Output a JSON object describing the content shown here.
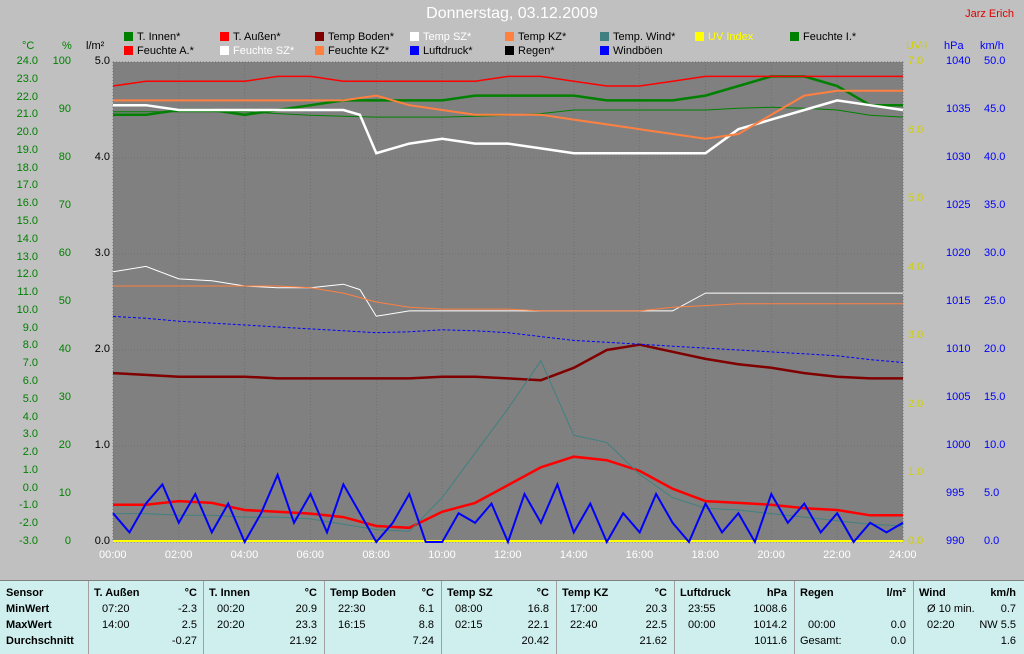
{
  "title": "Donnerstag, 03.12.2009",
  "author": "Jarz Erich",
  "colors": {
    "background": "#c0c0c0",
    "plot": "#808080",
    "grid": "#707070",
    "t_innen": "#008000",
    "t_aussen": "#ff0000",
    "temp_boden": "#800000",
    "temp_sz": "#ffffff",
    "temp_kz": "#ff8040",
    "temp_wind": "#408080",
    "uv_index": "#ffff00",
    "feuchte_i": "#008000",
    "feuchte_a": "#ff0000",
    "feuchte_sz": "#ffffff",
    "feuchte_kz": "#ff8040",
    "luftdruck": "#0000ff",
    "regen": "#000000",
    "windboeen": "#0000ff"
  },
  "legend_row1": [
    "T. Innen*",
    "T. Außen*",
    "Temp Boden*",
    "Temp SZ*",
    "Temp KZ*",
    "Temp. Wind*",
    "UV Index",
    "Feuchte I.*"
  ],
  "legend_row2": [
    "Feuchte A.*",
    "Feuchte SZ*",
    "Feuchte KZ*",
    "Luftdruck*",
    "Regen*",
    "Windböen"
  ],
  "axis_units": {
    "temp": "°C",
    "hum": "%",
    "rain": "l/m²",
    "uv": "UV-I",
    "press": "hPa",
    "wind": "km/h"
  },
  "chart_data": {
    "type": "line",
    "x_ticks": [
      "00:00",
      "02:00",
      "04:00",
      "06:00",
      "08:00",
      "10:00",
      "12:00",
      "14:00",
      "16:00",
      "18:00",
      "20:00",
      "22:00",
      "24:00"
    ],
    "temp_axis": {
      "min": -3.0,
      "max": 24.0,
      "step": 1.0,
      "labels": [
        "-3.0",
        "-2.0",
        "-1.0",
        "0.0",
        "1.0",
        "2.0",
        "3.0",
        "4.0",
        "5.0",
        "6.0",
        "7.0",
        "8.0",
        "9.0",
        "10.0",
        "11.0",
        "12.0",
        "13.0",
        "14.0",
        "15.0",
        "16.0",
        "17.0",
        "18.0",
        "19.0",
        "20.0",
        "21.0",
        "22.0",
        "23.0",
        "24.0"
      ]
    },
    "hum_axis": {
      "min": 0,
      "max": 100,
      "labels": [
        "0",
        "10",
        "20",
        "30",
        "40",
        "50",
        "60",
        "70",
        "80",
        "90",
        "100"
      ]
    },
    "rain_axis": {
      "min": 0.0,
      "max": 5.0,
      "labels": [
        "0.0",
        "1.0",
        "2.0",
        "3.0",
        "4.0",
        "5.0"
      ]
    },
    "uv_axis": {
      "min": 0.0,
      "max": 7.0,
      "labels": [
        "0.0",
        "1.0",
        "2.0",
        "3.0",
        "4.0",
        "5.0",
        "6.0",
        "7.0"
      ]
    },
    "press_axis": {
      "min": 990,
      "max": 1040,
      "labels": [
        "990",
        "995",
        "1000",
        "1005",
        "1010",
        "1015",
        "1020",
        "1025",
        "1030",
        "1035",
        "1040"
      ]
    },
    "wind_axis": {
      "min": 0.0,
      "max": 50.0,
      "labels": [
        "0.0",
        "5.0",
        "10.0",
        "15.0",
        "20.0",
        "25.0",
        "30.0",
        "35.0",
        "40.0",
        "45.0",
        "50.0"
      ]
    },
    "series": [
      {
        "name": "T. Innen*",
        "axis": "temp",
        "x": [
          0,
          1,
          2,
          3,
          4,
          5,
          6,
          7,
          8,
          9,
          10,
          11,
          12,
          13,
          14,
          15,
          16,
          17,
          18,
          19,
          20,
          21,
          22,
          23,
          24
        ],
        "y": [
          21.2,
          21.2,
          21.2,
          21.2,
          21.2,
          21.1,
          21.0,
          20.95,
          20.9,
          20.9,
          20.9,
          20.95,
          21.0,
          21.1,
          21.3,
          21.3,
          21.3,
          21.3,
          21.3,
          21.4,
          21.45,
          21.4,
          21.3,
          21.0,
          20.9
        ]
      },
      {
        "name": "T. Außen*",
        "axis": "temp",
        "x": [
          0,
          1,
          2,
          3,
          4,
          5,
          6,
          7,
          8,
          9,
          10,
          11,
          12,
          13,
          14,
          15,
          16,
          17,
          18,
          19,
          20,
          21,
          22,
          23,
          24
        ],
        "y": [
          -0.9,
          -0.9,
          -0.7,
          -0.8,
          -1.2,
          -1.3,
          -1.4,
          -1.6,
          -2.1,
          -2.2,
          -1.3,
          -0.8,
          0.2,
          1.2,
          1.8,
          1.6,
          1.0,
          0.0,
          -0.7,
          -0.8,
          -0.9,
          -1.1,
          -1.2,
          -1.5,
          -1.5
        ]
      },
      {
        "name": "Temp Boden*",
        "axis": "temp",
        "x": [
          0,
          1,
          2,
          3,
          4,
          5,
          6,
          7,
          8,
          9,
          10,
          11,
          12,
          13,
          14,
          15,
          16,
          17,
          18,
          19,
          20,
          21,
          22,
          23,
          24
        ],
        "y": [
          6.5,
          6.4,
          6.3,
          6.3,
          6.3,
          6.2,
          6.2,
          6.2,
          6.2,
          6.2,
          6.3,
          6.3,
          6.2,
          6.1,
          6.8,
          7.8,
          8.1,
          7.7,
          7.3,
          7.0,
          6.8,
          6.5,
          6.3,
          6.2,
          6.2
        ]
      },
      {
        "name": "Temp SZ*",
        "axis": "temp",
        "x": [
          0,
          1,
          2,
          3,
          4,
          5,
          6,
          7,
          7.5,
          8,
          9,
          10,
          11,
          12,
          13,
          14,
          15,
          16,
          17,
          18,
          19,
          20,
          21,
          22,
          23,
          24
        ],
        "y": [
          12.2,
          12.5,
          11.8,
          11.7,
          11.4,
          11.3,
          11.3,
          11.5,
          11.2,
          9.7,
          10.0,
          10.0,
          10.0,
          10.0,
          10.0,
          10.0,
          10.0,
          10.0,
          10.0,
          11.0,
          11.0,
          11.0,
          11.0,
          11.0,
          11.0,
          11.0
        ]
      },
      {
        "name": "Temp KZ*",
        "axis": "temp",
        "x": [
          0,
          1,
          2,
          3,
          4,
          5,
          6,
          7,
          8,
          9,
          10,
          11,
          12,
          13,
          14,
          15,
          16,
          17,
          18,
          19,
          20,
          21,
          22,
          23,
          24
        ],
        "y": [
          11.4,
          11.4,
          11.4,
          11.4,
          11.4,
          11.4,
          11.3,
          11.0,
          10.5,
          10.2,
          10.1,
          10.1,
          10.1,
          10.0,
          10.0,
          10.0,
          10.0,
          10.2,
          10.3,
          10.4,
          10.4,
          10.4,
          10.4,
          10.4,
          10.4
        ]
      },
      {
        "name": "Temp. Wind*",
        "axis": "temp",
        "x": [
          0,
          1,
          2,
          3,
          4,
          5,
          6,
          7,
          8,
          9,
          10,
          11,
          12,
          13,
          14,
          15,
          16,
          17,
          18,
          19,
          20,
          21,
          22,
          23,
          24
        ],
        "y": [
          -1.4,
          -1.4,
          -1.5,
          -1.5,
          -1.6,
          -1.6,
          -1.7,
          -2.0,
          -2.3,
          -2.4,
          -0.5,
          2.0,
          4.5,
          7.2,
          3.0,
          2.6,
          0.8,
          -0.5,
          -1.1,
          -1.2,
          -1.4,
          -1.6,
          -1.8,
          -2.0,
          -2.1
        ]
      },
      {
        "name": "Feuchte I.*",
        "axis": "hum",
        "x": [
          0,
          1,
          2,
          3,
          4,
          5,
          6,
          7,
          8,
          9,
          10,
          11,
          12,
          13,
          14,
          15,
          16,
          17,
          18,
          19,
          20,
          21,
          22,
          23,
          24
        ],
        "y": [
          89,
          89,
          90,
          90,
          89,
          90,
          91,
          92,
          92,
          92,
          92,
          93,
          93,
          93,
          93,
          92,
          92,
          92,
          93,
          95,
          97,
          97,
          95,
          91,
          91
        ]
      },
      {
        "name": "Feuchte A.*",
        "axis": "hum",
        "x": [
          0,
          1,
          2,
          3,
          4,
          5,
          6,
          7,
          8,
          9,
          10,
          11,
          12,
          13,
          14,
          15,
          16,
          17,
          18,
          19,
          20,
          21,
          22,
          23,
          24
        ],
        "y": [
          95,
          96,
          96,
          96,
          96,
          97,
          97,
          96,
          96,
          96,
          96,
          96,
          97,
          97,
          96,
          95,
          95,
          96,
          97,
          97,
          97,
          97,
          97,
          97,
          97
        ]
      },
      {
        "name": "Feuchte SZ*",
        "axis": "hum",
        "x": [
          0,
          1,
          2,
          3,
          4,
          5,
          6,
          7,
          7.5,
          8,
          9,
          10,
          11,
          12,
          13,
          14,
          15,
          16,
          17,
          18,
          19,
          20,
          21,
          22,
          23,
          24
        ],
        "y": [
          91,
          91,
          90,
          90,
          90,
          90,
          90,
          90,
          89,
          81,
          83,
          84,
          83,
          83,
          82,
          81,
          81,
          81,
          81,
          81,
          86,
          88,
          90,
          92,
          91,
          90
        ]
      },
      {
        "name": "Feuchte KZ*",
        "axis": "hum",
        "x": [
          0,
          1,
          2,
          3,
          4,
          5,
          6,
          7,
          8,
          9,
          10,
          11,
          12,
          13,
          14,
          15,
          16,
          17,
          18,
          19,
          20,
          21,
          22,
          23,
          24
        ],
        "y": [
          92,
          92,
          92,
          92,
          92,
          92,
          92,
          92,
          93,
          91,
          90,
          89,
          89,
          89,
          88,
          87,
          86,
          85,
          84,
          85,
          89,
          93,
          94,
          94,
          94
        ]
      },
      {
        "name": "Luftdruck*",
        "axis": "press",
        "x": [
          0,
          1,
          2,
          3,
          4,
          5,
          6,
          7,
          8,
          9,
          10,
          11,
          12,
          13,
          14,
          15,
          16,
          17,
          18,
          19,
          20,
          21,
          22,
          23,
          24
        ],
        "y": [
          1013.5,
          1013.3,
          1013.0,
          1012.8,
          1012.6,
          1012.4,
          1012.2,
          1012.0,
          1011.8,
          1011.9,
          1012.1,
          1012.0,
          1011.8,
          1011.4,
          1011.0,
          1010.8,
          1010.6,
          1010.4,
          1010.2,
          1010.0,
          1009.8,
          1009.6,
          1009.4,
          1009.0,
          1008.7
        ]
      },
      {
        "name": "Windböen",
        "axis": "wind",
        "x": [
          0,
          0.5,
          1,
          1.5,
          2,
          2.5,
          3,
          3.5,
          4,
          4.5,
          5,
          5.5,
          6,
          6.5,
          7,
          7.5,
          8,
          8.5,
          9,
          9.5,
          10,
          10.5,
          11,
          11.5,
          12,
          12.5,
          13,
          13.5,
          14,
          14.5,
          15,
          15.5,
          16,
          16.5,
          17,
          17.5,
          18,
          18.5,
          19,
          19.5,
          20,
          20.5,
          21,
          21.5,
          22,
          22.5,
          23,
          23.5,
          24
        ],
        "y": [
          3,
          1,
          4,
          6,
          2,
          5,
          1,
          4,
          0,
          3,
          7,
          2,
          5,
          1,
          6,
          3,
          0,
          2,
          5,
          0,
          0,
          3,
          2,
          4,
          0,
          5,
          2,
          6,
          1,
          4,
          0,
          3,
          1,
          5,
          2,
          0,
          4,
          1,
          3,
          0,
          5,
          2,
          4,
          1,
          3,
          0,
          2,
          1,
          2
        ]
      }
    ]
  },
  "stats": {
    "headers": {
      "sensor": "Sensor",
      "min": "MinWert",
      "max": "MaxWert",
      "avg": "Durchschnitt"
    },
    "columns": [
      {
        "name": "T. Außen",
        "unit": "°C",
        "min_time": "07:20",
        "min_val": "-2.3",
        "max_time": "14:00",
        "max_val": "2.5",
        "avg": "-0.27"
      },
      {
        "name": "T. Innen",
        "unit": "°C",
        "min_time": "00:20",
        "min_val": "20.9",
        "max_time": "20:20",
        "max_val": "23.3",
        "avg": "21.92"
      },
      {
        "name": "Temp Boden",
        "unit": "°C",
        "min_time": "22:30",
        "min_val": "6.1",
        "max_time": "16:15",
        "max_val": "8.8",
        "avg": "7.24"
      },
      {
        "name": "Temp SZ",
        "unit": "°C",
        "min_time": "08:00",
        "min_val": "16.8",
        "max_time": "02:15",
        "max_val": "22.1",
        "avg": "20.42"
      },
      {
        "name": "Temp KZ",
        "unit": "°C",
        "min_time": "17:00",
        "min_val": "20.3",
        "max_time": "22:40",
        "max_val": "22.5",
        "avg": "21.62"
      },
      {
        "name": "Luftdruck",
        "unit": "hPa",
        "min_time": "23:55",
        "min_val": "1008.6",
        "max_time": "00:00",
        "max_val": "1014.2",
        "avg": "1011.6"
      },
      {
        "name": "Regen",
        "unit": "l/m²",
        "min_time": "",
        "min_val": "",
        "max_time": "00:00",
        "max_val": "0.0",
        "avg_label": "Gesamt:",
        "avg": "0.0"
      },
      {
        "name": "Wind",
        "unit": "km/h",
        "min_time": "Ø 10 min.",
        "min_val": "0.7",
        "max_time": "02:20",
        "max_val": "NW 5.5",
        "avg": "1.6"
      }
    ]
  }
}
